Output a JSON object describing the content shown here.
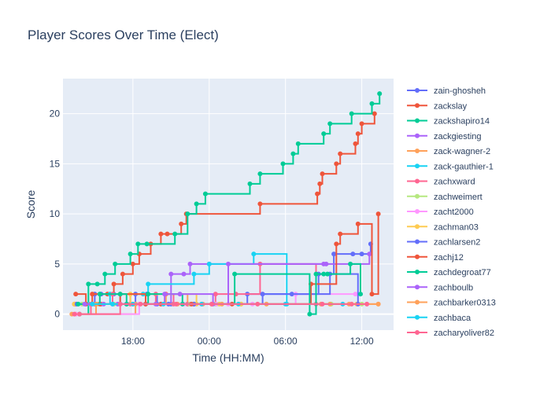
{
  "chart_data": {
    "type": "line",
    "line_shape": "step",
    "title": "Player Scores Over Time (Elect)",
    "xlabel": "Time (HH:MM)",
    "ylabel": "Score",
    "x_unit": "hours since 00:00 (negative = previous day)",
    "x_ticks": [
      {
        "value": -6,
        "label": "18:00"
      },
      {
        "value": 0,
        "label": "00:00"
      },
      {
        "value": 6,
        "label": "06:00"
      },
      {
        "value": 12,
        "label": "12:00"
      }
    ],
    "y_ticks": [
      0,
      5,
      10,
      15,
      20
    ],
    "xlim": [
      -11.5,
      14.5
    ],
    "ylim": [
      -1.6,
      23.5
    ],
    "grid": true,
    "legend_position": "right",
    "plot_bg": "#e5ecf6",
    "series": [
      {
        "name": "zain-ghosheh",
        "color": "#636efa",
        "x": [
          -10.5,
          -9.5,
          -9.0,
          -8.5,
          -7.5,
          -7.0,
          -6.5,
          -5.8,
          -4.9,
          -4.1,
          -3.0,
          -1.2,
          3.0,
          6.5,
          8.6,
          9.8,
          11.3,
          12.0,
          12.7
        ],
        "y": [
          1,
          1,
          2,
          2,
          2,
          1,
          1,
          2,
          2,
          1,
          1,
          1,
          2,
          2,
          4,
          6,
          6,
          6,
          7
        ]
      },
      {
        "name": "zackslay",
        "color": "#ef553b",
        "x": [
          -10.6,
          -9.2,
          -8.0,
          -7.5,
          -6.8,
          -6.0,
          -5.5,
          -4.6,
          -3.8,
          -3.3,
          -2.2,
          -1.8,
          4.0,
          8.5,
          8.7,
          8.9,
          10.0,
          10.3,
          11.5,
          11.7,
          12.0,
          13.0
        ],
        "y": [
          1,
          2,
          2,
          3,
          4,
          5,
          6,
          7,
          8,
          8,
          9,
          10,
          11,
          12,
          13,
          14,
          15,
          16,
          17,
          18,
          19,
          20
        ]
      },
      {
        "name": "zackshapiro14",
        "color": "#00cc96",
        "x": [
          -10.2,
          -9.5,
          -8.8,
          -8.2,
          -7.4,
          -6.2,
          -5.6,
          -4.9,
          -2.7,
          -1.7,
          -1.0,
          -0.3,
          3.2,
          4.0,
          5.8,
          6.6,
          7.0,
          9.0,
          9.5,
          11.2,
          12.8,
          13.4
        ],
        "y": [
          0,
          3,
          3,
          4,
          5,
          6,
          7,
          7,
          8,
          10,
          11,
          12,
          13,
          14,
          15,
          16,
          17,
          18,
          19,
          20,
          21,
          22
        ]
      },
      {
        "name": "zackgiesting",
        "color": "#ab63fa",
        "x": [
          -8.5,
          -7.2,
          -3.0,
          -2.0,
          -1.5,
          0.0,
          9.2,
          12.6
        ],
        "y": [
          1,
          1,
          4,
          4,
          5,
          5,
          5,
          6
        ]
      },
      {
        "name": "zack-wagner-2",
        "color": "#ffa15a",
        "x": [
          -10.5,
          -5.8,
          -3.4,
          -1.7,
          0.2,
          2.5,
          8.8,
          11.0,
          13.3
        ],
        "y": [
          0,
          1,
          2,
          1,
          1,
          1,
          1,
          1,
          1
        ]
      },
      {
        "name": "zack-gauthier-1",
        "color": "#19d3f3",
        "x": [
          -9.5,
          -7.8,
          -5.2,
          -4.8,
          -1.2,
          0.0,
          3.5,
          6.1
        ],
        "y": [
          1,
          2,
          2,
          3,
          4,
          5,
          6,
          1
        ]
      },
      {
        "name": "zachxward",
        "color": "#ff6692",
        "x": [
          -10.2,
          -9.3,
          -8.5,
          -7.6,
          -6.2,
          -5.5,
          -4.2,
          -3.4,
          -2.8,
          -1.7,
          -1.2,
          0.5,
          2.1,
          4.0,
          8.4,
          11.2
        ],
        "y": [
          0,
          1,
          1,
          2,
          1,
          1,
          2,
          2,
          1,
          1,
          1,
          2,
          2,
          5,
          1,
          1
        ]
      },
      {
        "name": "zachweimert",
        "color": "#b6e880",
        "x": [
          -10.0,
          -8.8,
          -7.5,
          -5.5,
          -1.5,
          0.5,
          9.6,
          12.0
        ],
        "y": [
          1,
          1,
          1,
          1,
          1,
          1,
          1,
          1
        ]
      },
      {
        "name": "zacht2000",
        "color": "#ff97ff",
        "x": [
          -10.5,
          -5.5,
          -2.0,
          -1.4,
          0.6,
          1.5,
          3.4,
          6.8,
          11.5
        ],
        "y": [
          0,
          1,
          1,
          1,
          1,
          1,
          1,
          2,
          2
        ]
      },
      {
        "name": "zachman03",
        "color": "#fecb52",
        "x": [
          -10.6,
          -6.2,
          -1.0,
          0.8,
          2.5,
          11.6
        ],
        "y": [
          1,
          2,
          1,
          1,
          1,
          1
        ]
      },
      {
        "name": "zachlarsen2",
        "color": "#636efa",
        "x": [
          -10.4,
          -9.0,
          -5.0,
          -3.2,
          -1.2,
          4.2,
          9.5,
          11.7
        ],
        "y": [
          1,
          1,
          1,
          1,
          1,
          2,
          4,
          1
        ]
      },
      {
        "name": "zachj12",
        "color": "#ef553b",
        "x": [
          -10.5,
          -9.7,
          -8.6,
          -7.0,
          -5.0,
          -3.8,
          -1.4,
          1.8,
          8.0,
          10.0,
          10.3,
          11.7,
          12.8,
          13.3
        ],
        "y": [
          2,
          1,
          1,
          2,
          1,
          1,
          1,
          1,
          3,
          7,
          8,
          9,
          2,
          10
        ]
      },
      {
        "name": "zachdegroat77",
        "color": "#00cc96",
        "x": [
          -10.3,
          -8.6,
          -7.0,
          -6.5,
          -4.8,
          -2.1,
          2.0,
          7.9,
          8.4,
          9.0,
          9.3,
          11.1,
          11.9
        ],
        "y": [
          1,
          2,
          2,
          1,
          2,
          1,
          4,
          0,
          4,
          4,
          4,
          5,
          2
        ]
      },
      {
        "name": "zachboulb",
        "color": "#ab63fa",
        "x": [
          -9.8,
          -8.3,
          -7.6,
          -4.2,
          -3.5,
          -2.3,
          0.3,
          1.5,
          9.0
        ],
        "y": [
          1,
          1,
          1,
          1,
          2,
          2,
          1,
          5,
          5
        ]
      },
      {
        "name": "zachbarker0313",
        "color": "#ffa15a",
        "x": [
          -10.8,
          -8.9,
          -6.0,
          -2.5,
          -0.5,
          1.0,
          4.5,
          9.5,
          13.3
        ],
        "y": [
          0,
          1,
          1,
          1,
          1,
          1,
          1,
          1,
          1
        ]
      },
      {
        "name": "zachbaca",
        "color": "#19d3f3",
        "x": [
          -9.2,
          -7.6,
          -6.0,
          -3.6,
          -0.6,
          2.3,
          6.0,
          10.5
        ],
        "y": [
          1,
          1,
          1,
          1,
          1,
          1,
          1,
          1
        ]
      },
      {
        "name": "zacharyoliver82",
        "color": "#ff6692",
        "x": [
          -10.6,
          -7.0,
          -5.4,
          -2.6,
          0.2,
          3.8,
          8.9,
          12.4
        ],
        "y": [
          0,
          1,
          1,
          1,
          1,
          1,
          1,
          1
        ]
      }
    ]
  }
}
